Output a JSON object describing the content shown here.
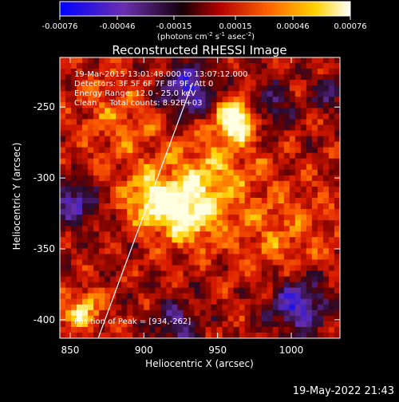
{
  "colorbar": {
    "ticks": [
      "-0.00076",
      "-0.00046",
      "-0.00015",
      "0.00015",
      "0.00046",
      "0.00076"
    ],
    "units_pre": "(photons cm",
    "units_sup1": "-2",
    "units_mid1": " s",
    "units_sup2": "-1",
    "units_mid2": " asec",
    "units_sup3": "-2",
    "units_post": ")"
  },
  "chart_data": {
    "type": "heatmap",
    "title": "Reconstructed RHESSI Image",
    "xlabel": "Heliocentric X (arcsec)",
    "ylabel": "Heliocentric Y (arcsec)",
    "xlim": [
      843,
      1033
    ],
    "ylim": [
      -413,
      -215
    ],
    "xticks": [
      850,
      900,
      950,
      1000
    ],
    "yticks": [
      -250,
      -300,
      -350,
      -400
    ],
    "colorbar_range": [
      -0.00076,
      0.00076
    ],
    "colormap": "blue-purple-black-red-orange-yellow-white",
    "peak": [
      934,
      -262
    ],
    "limb_line": [
      [
        869,
        -413
      ],
      [
        933,
        -233
      ]
    ],
    "info": {
      "time": "19-Mar-2015 13:01:48.000 to 13:07:12.000",
      "detectors": "Detectors: 3F 5F 6F 7F 8F 9F, Att 0",
      "energy": "Energy Range: 12.0 - 25.0 keV",
      "clean": "Clean     Total counts: 8.92E+03",
      "peak_label": "Position of Peak = [934,-262]"
    }
  },
  "footer": {
    "date": "19-May-2022 21:43"
  }
}
